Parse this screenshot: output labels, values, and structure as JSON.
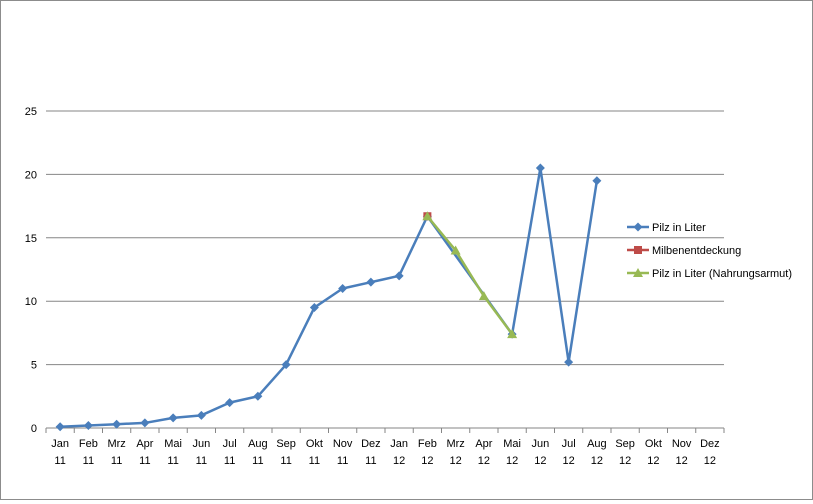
{
  "chart_data": {
    "type": "line",
    "categories": [
      "Jan 11",
      "Feb 11",
      "Mrz 11",
      "Apr 11",
      "Mai 11",
      "Jun 11",
      "Jul 11",
      "Aug 11",
      "Sep 11",
      "Okt 11",
      "Nov 11",
      "Dez 11",
      "Jan 12",
      "Feb 12",
      "Mrz 12",
      "Apr 12",
      "Mai 12",
      "Jun 12",
      "Jul 12",
      "Aug 12",
      "Sep 12",
      "Okt 12",
      "Nov 12",
      "Dez 12"
    ],
    "ylim": [
      0,
      25
    ],
    "yticks": [
      0,
      5,
      10,
      15,
      20,
      25
    ],
    "grid": true,
    "legend_position": "right",
    "series": [
      {
        "name": "Pilz in Liter",
        "color": "#4a7ebb",
        "marker": "diamond",
        "values": [
          0.1,
          0.2,
          0.3,
          0.4,
          0.8,
          1.0,
          2.0,
          2.5,
          5.0,
          9.5,
          11.0,
          11.5,
          12.0,
          16.7,
          null,
          null,
          7.4,
          20.5,
          5.2,
          19.5,
          null,
          null,
          null,
          null
        ]
      },
      {
        "name": "Milbenentdeckung",
        "color": "#be4b48",
        "marker": "square",
        "values": [
          null,
          null,
          null,
          null,
          null,
          null,
          null,
          null,
          null,
          null,
          null,
          null,
          null,
          16.7,
          null,
          null,
          null,
          null,
          null,
          null,
          null,
          null,
          null,
          null
        ]
      },
      {
        "name": "Pilz in Liter (Nahrungsarmut)",
        "color": "#98b954",
        "marker": "triangle",
        "values": [
          null,
          null,
          null,
          null,
          null,
          null,
          null,
          null,
          null,
          null,
          null,
          null,
          null,
          16.7,
          14.0,
          10.4,
          7.4,
          null,
          null,
          null,
          null,
          null,
          null,
          null
        ]
      }
    ]
  }
}
